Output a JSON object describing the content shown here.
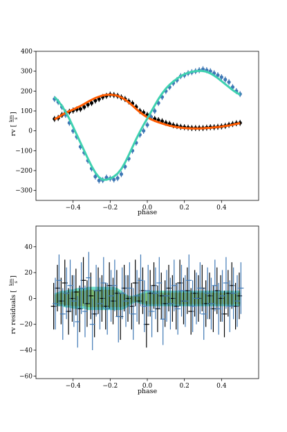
{
  "chart_data": [
    {
      "type": "scatter",
      "title": "",
      "xlabel": "phase",
      "ylabel_text": "rv [",
      "ylabel_num": "km",
      "ylabel_den": "s",
      "ylabel_close": "]",
      "xlim": [
        -0.6,
        0.6
      ],
      "ylim": [
        -350,
        400
      ],
      "xticks": [
        -0.4,
        -0.2,
        0.0,
        0.2,
        0.4
      ],
      "xtick_labels": [
        "−0.4",
        "−0.2",
        "0.0",
        "0.2",
        "0.4"
      ],
      "yticks": [
        -300,
        -200,
        -100,
        0,
        100,
        200,
        300,
        400
      ],
      "ytick_labels": [
        "−300",
        "−200",
        "−100",
        "0",
        "100",
        "200",
        "300",
        "400"
      ],
      "x": [
        -0.5,
        -0.48,
        -0.46,
        -0.44,
        -0.42,
        -0.4,
        -0.38,
        -0.36,
        -0.34,
        -0.32,
        -0.3,
        -0.28,
        -0.26,
        -0.24,
        -0.22,
        -0.2,
        -0.18,
        -0.16,
        -0.14,
        -0.12,
        -0.1,
        -0.08,
        -0.06,
        -0.04,
        -0.02,
        0.0,
        0.02,
        0.04,
        0.06,
        0.08,
        0.1,
        0.12,
        0.14,
        0.16,
        0.18,
        0.2,
        0.22,
        0.24,
        0.26,
        0.28,
        0.3,
        0.32,
        0.34,
        0.36,
        0.38,
        0.4,
        0.42,
        0.44,
        0.46,
        0.48,
        0.5
      ],
      "series": [
        {
          "color": "#000000",
          "marker": "circle",
          "yerr": 15,
          "values": [
            60,
            65,
            80,
            92,
            96,
            102,
            108,
            110,
            120,
            132,
            140,
            152,
            160,
            170,
            176,
            182,
            180,
            176,
            168,
            160,
            148,
            138,
            120,
            100,
            92,
            80,
            70,
            60,
            54,
            48,
            40,
            35,
            28,
            24,
            20,
            18,
            16,
            14,
            14,
            14,
            14,
            16,
            18,
            18,
            20,
            22,
            25,
            30,
            34,
            38,
            40
          ]
        },
        {
          "color": "#3f78b5",
          "marker": "circle",
          "yerr": 15,
          "values": [
            160,
            145,
            120,
            80,
            40,
            0,
            -30,
            -80,
            -110,
            -150,
            -190,
            -230,
            -250,
            -248,
            -235,
            -240,
            -245,
            -238,
            -218,
            -180,
            -140,
            -100,
            -60,
            -20,
            0,
            30,
            70,
            100,
            140,
            170,
            200,
            220,
            240,
            255,
            275,
            280,
            290,
            295,
            300,
            305,
            310,
            305,
            300,
            290,
            280,
            270,
            258,
            245,
            220,
            200,
            185
          ]
        },
        {
          "color": "#ff5b00",
          "marker": "line",
          "values": [
            58,
            68,
            80,
            90,
            99,
            107,
            116,
            125,
            135,
            146,
            156,
            165,
            172,
            178,
            181,
            182,
            180,
            176,
            168,
            157,
            143,
            127,
            110,
            94,
            80,
            68,
            58,
            50,
            43,
            37,
            31,
            26,
            22,
            19,
            16,
            14,
            13,
            12,
            12,
            12,
            13,
            14,
            15,
            17,
            19,
            21,
            24,
            27,
            31,
            35,
            39
          ]
        },
        {
          "color": "#3fd1b0",
          "marker": "line",
          "values": [
            170,
            150,
            125,
            95,
            60,
            20,
            -20,
            -60,
            -100,
            -140,
            -178,
            -210,
            -234,
            -246,
            -246,
            -240,
            -230,
            -215,
            -192,
            -160,
            -122,
            -82,
            -42,
            -5,
            30,
            62,
            95,
            128,
            160,
            188,
            212,
            232,
            248,
            262,
            275,
            285,
            292,
            297,
            300,
            302,
            301,
            297,
            289,
            278,
            265,
            250,
            235,
            220,
            205,
            192,
            182
          ]
        }
      ]
    },
    {
      "type": "scatter",
      "title": "",
      "xlabel": "phase",
      "ylabel_text": "rv residuals [",
      "ylabel_num": "km",
      "ylabel_den": "s",
      "ylabel_close": "]",
      "xlim": [
        -0.6,
        0.6
      ],
      "ylim": [
        -62,
        56
      ],
      "xticks": [
        -0.4,
        -0.2,
        0.0,
        0.2,
        0.4
      ],
      "xtick_labels": [
        "−0.4",
        "−0.2",
        "0.0",
        "0.2",
        "0.4"
      ],
      "yticks": [
        -60,
        -40,
        -20,
        0,
        20,
        40
      ],
      "ytick_labels": [
        "−60",
        "−40",
        "−20",
        "0",
        "20",
        "40"
      ],
      "x": [
        -0.5,
        -0.48,
        -0.46,
        -0.44,
        -0.42,
        -0.4,
        -0.38,
        -0.36,
        -0.34,
        -0.32,
        -0.3,
        -0.28,
        -0.26,
        -0.24,
        -0.22,
        -0.2,
        -0.18,
        -0.16,
        -0.14,
        -0.12,
        -0.1,
        -0.08,
        -0.06,
        -0.04,
        -0.02,
        0.0,
        0.02,
        0.04,
        0.06,
        0.08,
        0.1,
        0.12,
        0.14,
        0.16,
        0.18,
        0.2,
        0.22,
        0.24,
        0.26,
        0.28,
        0.3,
        0.32,
        0.34,
        0.36,
        0.38,
        0.4,
        0.42,
        0.44,
        0.46,
        0.48,
        0.5
      ],
      "band": {
        "color_outer": "#3fd1b0",
        "color_inner": "#7fae5a",
        "upper": [
          4,
          5,
          6,
          6,
          7,
          7,
          8,
          8,
          8,
          9,
          9,
          9,
          9,
          9,
          9,
          9,
          9,
          8,
          6,
          4,
          2,
          2,
          3,
          4,
          5,
          6,
          6,
          6,
          6,
          6,
          6,
          6,
          6,
          6,
          6,
          6,
          6,
          6,
          6,
          6,
          6,
          6,
          6,
          6,
          6,
          6,
          6,
          6,
          6,
          6,
          6
        ],
        "lower": [
          -5,
          -6,
          -6,
          -7,
          -7,
          -8,
          -8,
          -8,
          -8,
          -9,
          -9,
          -9,
          -9,
          -9,
          -9,
          -9,
          -9,
          -9,
          -9,
          -8,
          -6,
          -4,
          -3,
          -4,
          -5,
          -6,
          -6,
          -6,
          -6,
          -6,
          -6,
          -6,
          -6,
          -6,
          -6,
          -6,
          -6,
          -6,
          -6,
          -6,
          -6,
          -6,
          -6,
          -6,
          -6,
          -6,
          -6,
          -6,
          -6,
          -6,
          -6
        ]
      },
      "series": [
        {
          "color": "#000000",
          "yerr": 18,
          "values": [
            -6,
            8,
            -2,
            12,
            -10,
            0,
            5,
            -8,
            14,
            -4,
            2,
            -12,
            6,
            0,
            -6,
            10,
            -2,
            4,
            -14,
            8,
            0,
            -6,
            12,
            -2,
            6,
            -20,
            4,
            10,
            -8,
            2,
            -4,
            8,
            0,
            -6,
            12,
            -2,
            6,
            -10,
            4,
            0,
            8,
            -4,
            2,
            -8,
            6,
            0,
            -12,
            4,
            10,
            -6,
            2
          ]
        },
        {
          "color": "#3f78b5",
          "yerr": 20,
          "values": [
            -4,
            14,
            -12,
            4,
            10,
            -2,
            -18,
            8,
            -10,
            16,
            -20,
            6,
            -4,
            12,
            -8,
            2,
            10,
            -14,
            4,
            -2,
            8,
            -12,
            2,
            14,
            -6,
            6,
            -10,
            4,
            12,
            -16,
            2,
            -4,
            10,
            -8,
            6,
            -2,
            14,
            -6,
            0,
            8,
            -12,
            4,
            -4,
            10,
            -8,
            2,
            12,
            -6,
            4,
            -2,
            8
          ]
        }
      ]
    }
  ]
}
